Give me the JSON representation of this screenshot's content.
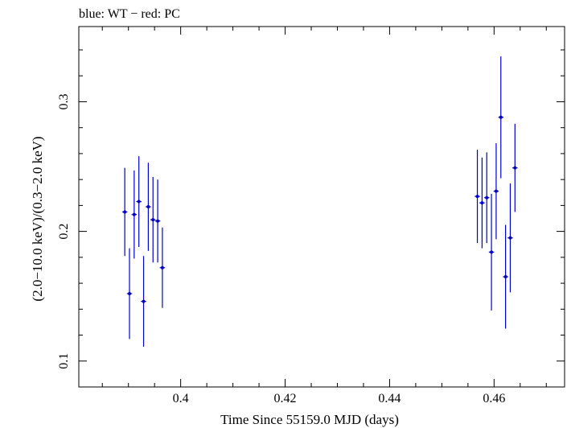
{
  "chart_data": {
    "type": "scatter",
    "title": "blue: WT − red: PC",
    "xlabel": "Time Since 55159.0 MJD (days)",
    "ylabel": "(2.0−10.0 keV)/(0.3−2.0 keV)",
    "xlim": [
      0.3805,
      0.4735
    ],
    "ylim": [
      0.08,
      0.358
    ],
    "xticks": [
      0.4,
      0.42,
      0.44,
      0.46
    ],
    "xtick_labels": [
      "0.4",
      "0.42",
      "0.44",
      "0.46"
    ],
    "yticks": [
      0.1,
      0.2,
      0.3
    ],
    "ytick_labels": [
      "0.1",
      "0.2",
      "0.3"
    ],
    "grid": false,
    "series": [
      {
        "color": "#0000cc",
        "points": [
          {
            "x": 0.3893,
            "xerr": 0.0005,
            "y": 0.215,
            "yerr": 0.034
          },
          {
            "x": 0.3902,
            "xerr": 0.0005,
            "y": 0.152,
            "yerr": 0.035
          },
          {
            "x": 0.3911,
            "xerr": 0.0005,
            "y": 0.213,
            "yerr": 0.034
          },
          {
            "x": 0.392,
            "xerr": 0.0005,
            "y": 0.223,
            "yerr": 0.035
          },
          {
            "x": 0.3929,
            "xerr": 0.0005,
            "y": 0.146,
            "yerr": 0.035
          },
          {
            "x": 0.3938,
            "xerr": 0.0005,
            "y": 0.219,
            "yerr": 0.034
          },
          {
            "x": 0.3947,
            "xerr": 0.0005,
            "y": 0.209,
            "yerr": 0.033
          },
          {
            "x": 0.3956,
            "xerr": 0.0005,
            "y": 0.208,
            "yerr": 0.032
          },
          {
            "x": 0.3965,
            "xerr": 0.0005,
            "y": 0.172,
            "yerr": 0.031
          },
          {
            "x": 0.4568,
            "xerr": 0.0005,
            "y": 0.227,
            "yerr": 0.036
          },
          {
            "x": 0.4577,
            "xerr": 0.0005,
            "y": 0.222,
            "yerr": 0.035
          },
          {
            "x": 0.4586,
            "xerr": 0.0005,
            "y": 0.226,
            "yerr": 0.035
          },
          {
            "x": 0.4595,
            "xerr": 0.0005,
            "y": 0.184,
            "yerr": 0.045
          },
          {
            "x": 0.4604,
            "xerr": 0.0005,
            "y": 0.231,
            "yerr": 0.037
          },
          {
            "x": 0.4613,
            "xerr": 0.0005,
            "y": 0.288,
            "yerr": 0.047
          },
          {
            "x": 0.4622,
            "xerr": 0.0005,
            "y": 0.165,
            "yerr": 0.04
          },
          {
            "x": 0.4631,
            "xerr": 0.0005,
            "y": 0.195,
            "yerr": 0.042
          },
          {
            "x": 0.464,
            "xerr": 0.0005,
            "y": 0.249,
            "yerr": 0.034
          }
        ]
      }
    ]
  }
}
